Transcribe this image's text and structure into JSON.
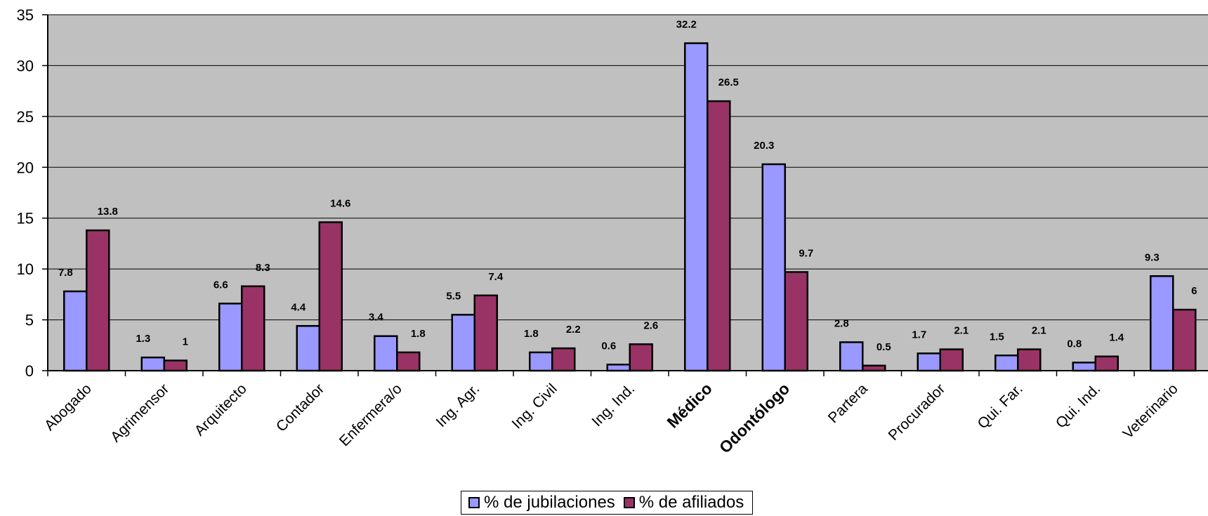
{
  "chart_data": {
    "type": "bar",
    "title": "",
    "xlabel": "",
    "ylabel": "",
    "ylim": [
      0,
      35
    ],
    "yticks": [
      "0",
      "5",
      "10",
      "15",
      "20",
      "25",
      "30",
      "35"
    ],
    "grid": true,
    "legend_position": "bottom",
    "categories": [
      "Abogado",
      "Agrimensor",
      "Arquitecto",
      "Contador",
      "Enfermera/o",
      "Ing. Agr.",
      "Ing. Civil",
      "Ing. Ind.",
      "Médico",
      "Odontólogo",
      "Partera",
      "Procurador",
      "Qui. Far.",
      "Qui. Ind.",
      "Veterinario"
    ],
    "bold_categories": [
      "Médico",
      "Odontólogo"
    ],
    "series": [
      {
        "name": "% de jubilaciones",
        "color": "#9999ff",
        "values": [
          7.8,
          1.3,
          6.6,
          4.4,
          3.4,
          5.5,
          1.8,
          0.6,
          32.2,
          20.3,
          2.8,
          1.7,
          1.5,
          0.8,
          9.3
        ]
      },
      {
        "name": "% de afiliados",
        "color": "#993366",
        "values": [
          13.8,
          1,
          8.3,
          14.6,
          1.8,
          7.4,
          2.2,
          2.6,
          26.5,
          9.7,
          0.5,
          2.1,
          2.1,
          1.4,
          6
        ]
      }
    ],
    "plot_background": "#c0c0c0"
  }
}
